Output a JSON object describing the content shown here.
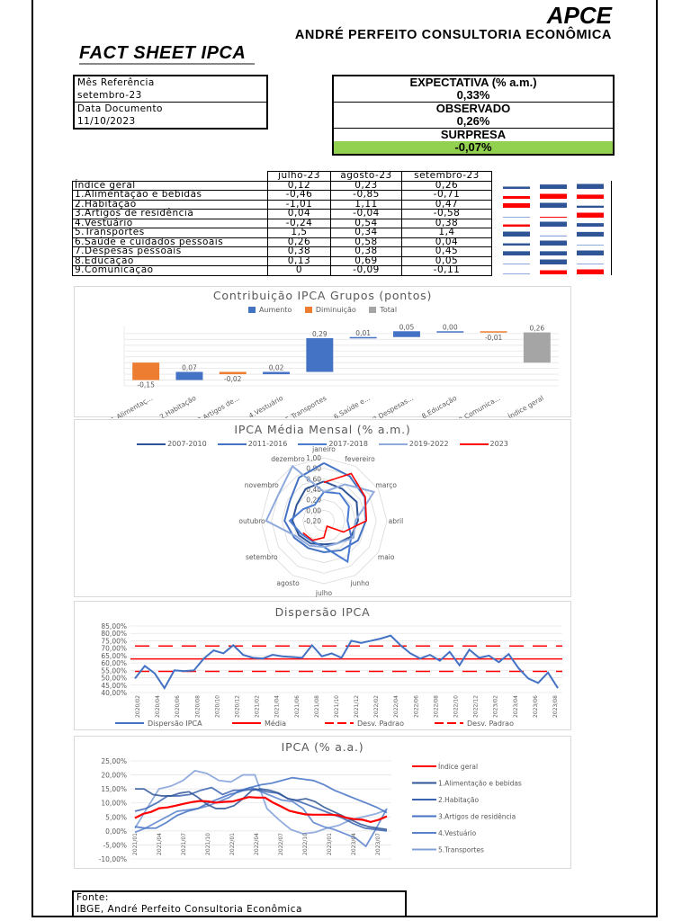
{
  "header": {
    "brand": "APCE",
    "company": "ANDRÉ PERFEITO CONSULTORIA ECONÔMICA",
    "title": "FACT SHEET IPCA"
  },
  "info": {
    "ref_label": "Mês Referência",
    "ref_value": "setembro-23",
    "date_label": "Data Documento",
    "date_value": "11/10/2023"
  },
  "summary": {
    "expectation_label": "EXPECTATIVA (% a.m.)",
    "expectation_value": "0,33%",
    "observed_label": "OBSERVADO",
    "observed_value": "0,26%",
    "surprise_label": "SURPRESA",
    "surprise_value": "-0,07%",
    "surprise_color": "#92d050"
  },
  "table": {
    "columns": [
      "julho-23",
      "agosto-23",
      "setembro-23"
    ],
    "rows": [
      {
        "label": "Índice geral",
        "values": [
          "0,12",
          "0,23",
          "0,26"
        ]
      },
      {
        "label": "1.Alimentação e bebidas",
        "values": [
          "-0,46",
          "-0,85",
          "-0,71"
        ]
      },
      {
        "label": "2.Habitação",
        "values": [
          "-1,01",
          "1,11",
          "0,47"
        ]
      },
      {
        "label": "3.Artigos de residência",
        "values": [
          "0,04",
          "-0,04",
          "-0,58"
        ]
      },
      {
        "label": "4.Vestuário",
        "values": [
          "-0,24",
          "0,54",
          "0,38"
        ]
      },
      {
        "label": "5.Transportes",
        "values": [
          "1,5",
          "0,34",
          "1,4"
        ]
      },
      {
        "label": "6.Saúde e cuidados pessoais",
        "values": [
          "0,26",
          "0,58",
          "0,04"
        ]
      },
      {
        "label": "7.Despesas pessoais",
        "values": [
          "0,38",
          "0,38",
          "0,45"
        ]
      },
      {
        "label": "8.Educação",
        "values": [
          "0,13",
          "0,69",
          "0,05"
        ]
      },
      {
        "label": "9.Comunicação",
        "values": [
          "0",
          "-0,09",
          "-0,11"
        ]
      }
    ]
  },
  "footer": {
    "source_label": "Fonte:",
    "source_value": "IBGE, André Perfeito Consultoria Econômica"
  },
  "colors": {
    "increase": "#4472c4",
    "decrease": "#ed7d31",
    "total": "#a5a5a5",
    "red": "#ff0000",
    "blue_dark": "#2f5597",
    "blue_mid": "#4472c4",
    "blue_light": "#8faadc"
  },
  "chart_data": [
    {
      "type": "bar",
      "subtype": "waterfall",
      "title": "Contribuição IPCA Grupos (pontos)",
      "legend": [
        "Aumento",
        "Diminuição",
        "Total"
      ],
      "categories": [
        "1.Alimentaç...",
        "2.Habitação",
        "3.Artigos de...",
        "4.Vestuário",
        "5.Transportes",
        "6.Saúde e...",
        "7.Despesas...",
        "8.Educação",
        "9.Comunica...",
        "Índice geral"
      ],
      "values": [
        -0.15,
        0.07,
        -0.02,
        0.02,
        0.29,
        0.01,
        0.05,
        0.0,
        -0.01,
        0.26
      ],
      "labels": [
        "-0,15",
        "0,07",
        "-0,02",
        "0,02",
        "0,29",
        "0,01",
        "0,05",
        "0,00",
        "-0,01",
        "0,26"
      ],
      "grid": true
    },
    {
      "type": "radar",
      "title": "IPCA Média Mensal (% a.m.)",
      "categories": [
        "janeiro",
        "fevereiro",
        "março",
        "abril",
        "maio",
        "junho",
        "julho",
        "agosto",
        "setembro",
        "outubro",
        "novembro",
        "dezembro"
      ],
      "axis_ticks": [
        "-0,20",
        "0,00",
        "0,20",
        "0,40",
        "0,60",
        "0,80",
        "1,00"
      ],
      "series": [
        {
          "name": "2007-2010",
          "values": [
            0.55,
            0.5,
            0.52,
            0.45,
            0.4,
            0.3,
            0.25,
            0.3,
            0.35,
            0.4,
            0.4,
            0.5
          ]
        },
        {
          "name": "2011-2016",
          "values": [
            0.9,
            0.78,
            0.7,
            0.6,
            0.55,
            0.45,
            0.4,
            0.4,
            0.45,
            0.55,
            0.55,
            0.75
          ]
        },
        {
          "name": "2017-2018",
          "values": [
            0.35,
            0.4,
            0.35,
            0.25,
            0.4,
            0.7,
            0.3,
            0.25,
            0.3,
            0.45,
            0.25,
            0.15
          ]
        },
        {
          "name": "2019-2022",
          "values": [
            0.35,
            0.6,
            0.9,
            0.4,
            0.45,
            0.3,
            0.3,
            0.35,
            0.4,
            0.9,
            0.8,
            1.0
          ]
        },
        {
          "name": "2023",
          "values": [
            0.53,
            0.84,
            0.71,
            0.61,
            0.23,
            -0.08,
            0.12,
            0.23,
            0.26,
            null,
            null,
            null
          ]
        }
      ]
    },
    {
      "type": "line",
      "title": "Dispersão IPCA",
      "x": [
        "2020/02",
        "2020/04",
        "2020/06",
        "2020/08",
        "2020/10",
        "2020/12",
        "2021/02",
        "2021/04",
        "2021/06",
        "2021/08",
        "2021/10",
        "2021/12",
        "2022/02",
        "2022/04",
        "2022/06",
        "2022/08",
        "2022/10",
        "2022/12",
        "2023/02",
        "2023/04",
        "2023/06",
        "2023/08"
      ],
      "yticks": [
        "40,00%",
        "45,00%",
        "50,00%",
        "55,00%",
        "60,00%",
        "65,00%",
        "70,00%",
        "75,00%",
        "80,00%",
        "85,00%"
      ],
      "ylim": [
        40,
        85
      ],
      "legend": [
        "Dispersão IPCA",
        "Média",
        "Desv. Padrao",
        "Desv. Padrao"
      ],
      "series": [
        {
          "name": "Dispersão IPCA",
          "values": [
            49.5,
            58,
            53,
            43,
            55,
            54.5,
            55,
            63,
            68.5,
            66.5,
            72,
            65.5,
            63.5,
            63,
            65.5,
            64.5,
            64,
            63.5,
            72,
            64.5,
            66.5,
            63.5,
            75,
            73.5,
            75,
            76.5,
            78.5,
            72,
            66.5,
            63,
            65.5,
            61.5,
            67.5,
            58.5,
            69,
            63.5,
            65,
            60.5,
            66,
            56.5,
            49.5,
            46.5,
            53.5,
            43
          ]
        },
        {
          "name": "Média",
          "values": [
            62.7
          ]
        },
        {
          "name": "Desv. Padrao +",
          "values": [
            71.5
          ]
        },
        {
          "name": "Desv. Padrao -",
          "values": [
            54.3
          ]
        }
      ]
    },
    {
      "type": "line",
      "title": "IPCA (% a.a.)",
      "x": [
        "2021/01",
        "2021/04",
        "2021/07",
        "2021/10",
        "2022/01",
        "2022/04",
        "2022/07",
        "2022/10",
        "2023/01",
        "2023/04",
        "2023/07"
      ],
      "yticks": [
        "-10,00%",
        "-5,00%",
        "0,00%",
        "5,00%",
        "10,00%",
        "15,00%",
        "20,00%",
        "25,00%"
      ],
      "ylim": [
        -10,
        25
      ],
      "legend": [
        "Índice geral",
        "1.Alimentação e bebidas",
        "2.Habitação",
        "3.Artigos de residência",
        "4.Vestuário",
        "5.Transportes"
      ],
      "series": [
        {
          "name": "Índice geral",
          "values": [
            4.6,
            6.1,
            6.8,
            8.1,
            8.4,
            9.0,
            9.7,
            10.3,
            10.7,
            10.5,
            10.1,
            10.4,
            10.5,
            11.3,
            12.1,
            11.9,
            11.9,
            10.1,
            8.7,
            7.2,
            6.5,
            5.9,
            5.8,
            5.8,
            5.8,
            5.6,
            4.7,
            4.2,
            4.0,
            3.2,
            4.0,
            5.2
          ]
        },
        {
          "name": "1.Alimentação e bebidas",
          "values": [
            15.0,
            15.0,
            13.0,
            12.5,
            12.5,
            13.5,
            14.0,
            12.0,
            9.5,
            8.0,
            8.0,
            9.0,
            11.5,
            14.5,
            15.0,
            14.5,
            13.5,
            11.5,
            11.0,
            11.5,
            10.5,
            8.5,
            7.0,
            5.5,
            4.0,
            2.5,
            1.5,
            1.0,
            0.5
          ]
        },
        {
          "name": "2.Habitação",
          "values": [
            7.0,
            8.0,
            10.0,
            12.5,
            12.5,
            13.0,
            14.5,
            15.5,
            13.0,
            14.5,
            14.5,
            15.0,
            14.0,
            13.5,
            11.5,
            10.5,
            9.0,
            7.5,
            6.0,
            4.5,
            2.5,
            1.0,
            0.5,
            0.0
          ]
        },
        {
          "name": "3.Artigos de residência",
          "values": [
            1.5,
            1.0,
            1.0,
            3.0,
            5.5,
            7.0,
            8.0,
            10.0,
            11.5,
            13.0,
            14.0,
            15.5,
            16.5,
            17.0,
            18.0,
            19.0,
            18.5,
            18.0,
            16.5,
            14.5,
            13.0,
            11.5,
            10.0,
            8.5,
            6.5
          ]
        },
        {
          "name": "4.Vestuário",
          "values": [
            -0.5,
            1.0,
            3.0,
            5.0,
            7.0,
            7.5,
            8.0,
            9.0,
            10.5,
            12.0,
            14.5,
            15.5,
            14.0,
            12.5,
            11.0,
            10.5,
            8.0,
            3.0,
            1.5,
            0.5,
            -1.0,
            -2.5,
            -5.5,
            1.0,
            8.0
          ]
        },
        {
          "name": "5.Transportes",
          "values": [
            1.0,
            8.0,
            15.0,
            16.0,
            18.0,
            21.5,
            20.5,
            18.0,
            17.5,
            20.0,
            20.0,
            8.0,
            4.0,
            0.5,
            -1.0,
            -0.5,
            1.0,
            2.0,
            4.0,
            5.0,
            6.0,
            7.5
          ]
        }
      ]
    }
  ]
}
